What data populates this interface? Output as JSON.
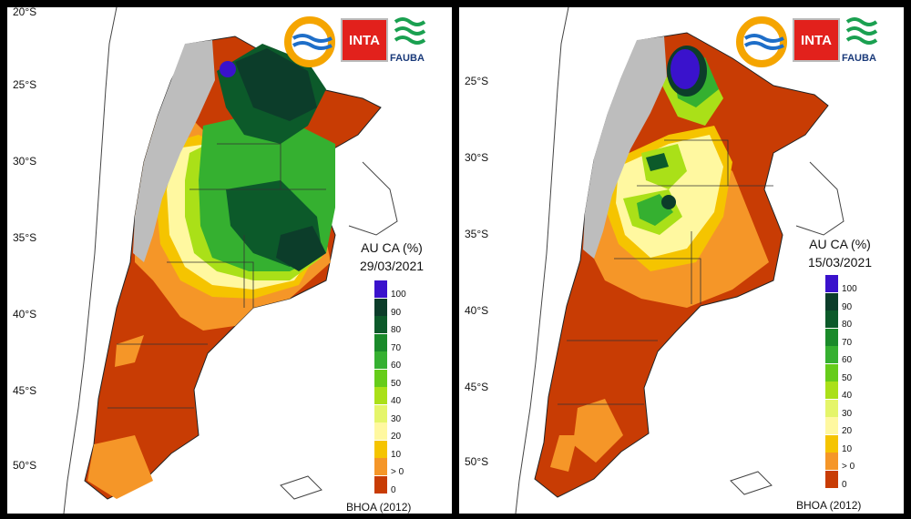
{
  "panels": [
    {
      "id": "left",
      "legend_title": "AU CA (%)",
      "date": "29/03/2021",
      "credit": "BHOA (2012)",
      "lat_labels": [
        "20°S",
        "25°S",
        "30°S",
        "35°S",
        "40°S",
        "45°S",
        "50°S"
      ]
    },
    {
      "id": "right",
      "legend_title": "AU CA (%)",
      "date": "15/03/2021",
      "credit": "BHOA (2012)",
      "lat_labels": [
        "25°S",
        "30°S",
        "35°S",
        "40°S",
        "45°S",
        "50°S"
      ]
    }
  ],
  "logos": {
    "inta": "INTA",
    "fauba": "FAUBA"
  },
  "legend": {
    "labels": [
      "100",
      "90",
      "80",
      "70",
      "60",
      "50",
      "40",
      "30",
      "20",
      "10",
      "> 0",
      "0"
    ],
    "colors": [
      "#3a12cc",
      "#0c3d2a",
      "#0c5a2a",
      "#1a8a2a",
      "#35b030",
      "#66cc1a",
      "#aae018",
      "#e5f56a",
      "#fff8a0",
      "#f5c400",
      "#f59628",
      "#c83c04"
    ]
  },
  "map_colors": {
    "dry": "#c83c04",
    "low": "#f59628",
    "mid": "#f5c400",
    "yellow": "#fff8a0",
    "ygreen": "#aae018",
    "green": "#35b030",
    "dgreen": "#0c5a2a",
    "vdgreen": "#0c3d2a",
    "purple": "#3a12cc",
    "mountain": "#bdbdbd"
  }
}
